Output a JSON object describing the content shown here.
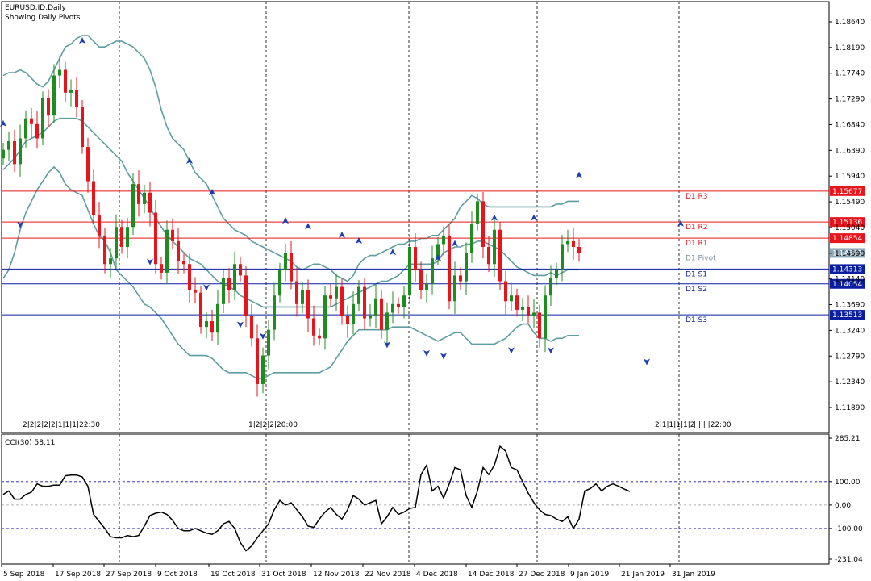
{
  "main": {
    "title": "EURUSD.ID,Daily",
    "subtitle": "Showing Daily Pivots.",
    "bottom_markers": [
      {
        "label": "2|2|2|2|2|1|1|1|22:30"
      },
      {
        "label": "1|2|2|2|20:00"
      },
      {
        "label": "2|1|1|1|1|2"
      },
      {
        "label": "| | | |22:00"
      }
    ]
  },
  "colors": {
    "bull": "#1e8c1e",
    "bear": "#e8141c",
    "bands": "#5f9ea0",
    "pivot_red": "#e8141c",
    "pivot_blue": "#0a1ea0",
    "pivot_mid": "#7f8f9f",
    "fractal": "#1e3cb4",
    "cci_line": "#000000",
    "cci_level": "#1414c8"
  },
  "chart_data": [
    {
      "type": "candlestick",
      "title": "EURUSD.ID,Daily",
      "ylim": [
        1.1166,
        1.1886
      ],
      "y_ticks": [
        "1.18640",
        "1.18190",
        "1.17740",
        "1.17290",
        "1.16840",
        "1.16390",
        "1.15940",
        "1.15490",
        "1.15040",
        "1.14590",
        "1.14140",
        "1.13690",
        "1.13240",
        "1.12790",
        "1.12340",
        "1.11890"
      ],
      "x_ticks": [
        "5 Sep 2018",
        "17 Sep 2018",
        "27 Sep 2018",
        "9 Oct 2018",
        "19 Oct 2018",
        "31 Oct 2018",
        "12 Nov 2018",
        "22 Nov 2018",
        "4 Dec 2018",
        "14 Dec 2018",
        "27 Dec 2018",
        "9 Jan 2019",
        "21 Jan 2019",
        "31 Jan 2019"
      ],
      "current_price": "1.14595",
      "pivots": [
        {
          "name": "D1 R3",
          "value": 1.15677,
          "tag": "1.15677",
          "color": "red"
        },
        {
          "name": "D1 R2",
          "value": 1.15136,
          "tag": "1.15136",
          "color": "red"
        },
        {
          "name": "D1 R1",
          "value": 1.14854,
          "tag": "1.14854",
          "color": "red"
        },
        {
          "name": "D1 Pivot",
          "value": 1.14595,
          "tag": "",
          "color": "mid"
        },
        {
          "name": "D1 S1",
          "value": 1.14313,
          "tag": "1.14313",
          "color": "blue"
        },
        {
          "name": "D1 S2",
          "value": 1.14054,
          "tag": "1.14054",
          "color": "blue"
        },
        {
          "name": "D1 S3",
          "value": 1.13513,
          "tag": "1.13513",
          "color": "blue"
        }
      ],
      "close": [
        1.164,
        1.1655,
        1.1615,
        1.166,
        1.1695,
        1.1685,
        1.166,
        1.173,
        1.17,
        1.177,
        1.178,
        1.174,
        1.1745,
        1.1715,
        1.1645,
        1.1585,
        1.1525,
        1.149,
        1.144,
        1.145,
        1.1505,
        1.147,
        1.1505,
        1.158,
        1.1545,
        1.1565,
        1.153,
        1.144,
        1.1425,
        1.15,
        1.148,
        1.1445,
        1.144,
        1.1395,
        1.139,
        1.133,
        1.134,
        1.132,
        1.137,
        1.1415,
        1.1395,
        1.144,
        1.142,
        1.135,
        1.131,
        1.123,
        1.128,
        1.1325,
        1.1385,
        1.143,
        1.146,
        1.141,
        1.137,
        1.1395,
        1.1345,
        1.1315,
        1.131,
        1.1385,
        1.138,
        1.14,
        1.135,
        1.1335,
        1.137,
        1.14,
        1.1345,
        1.135,
        1.138,
        1.1325,
        1.1355,
        1.137,
        1.1365,
        1.1385,
        1.147,
        1.143,
        1.1395,
        1.1405,
        1.145,
        1.1475,
        1.149,
        1.1375,
        1.142,
        1.141,
        1.146,
        1.151,
        1.155,
        1.147,
        1.144,
        1.15,
        1.141,
        1.1375,
        1.1385,
        1.136,
        1.1365,
        1.135,
        1.1355,
        1.131,
        1.1385,
        1.1415,
        1.143,
        1.1475,
        1.148,
        1.147,
        1.146
      ],
      "bands_upper": [
        1.177,
        1.1775,
        1.1775,
        1.178,
        1.1775,
        1.1765,
        1.1755,
        1.175,
        1.176,
        1.178,
        1.18,
        1.182,
        1.1825,
        1.1835,
        1.184,
        1.184,
        1.183,
        1.182,
        1.182,
        1.1825,
        1.183,
        1.183,
        1.1825,
        1.182,
        1.181,
        1.18,
        1.178,
        1.175,
        1.171,
        1.168,
        1.166,
        1.165,
        1.164,
        1.162,
        1.16,
        1.159,
        1.158,
        1.156,
        1.154,
        1.152,
        1.151,
        1.15,
        1.1495,
        1.149,
        1.148,
        1.1475,
        1.147,
        1.1465,
        1.146,
        1.1455,
        1.145,
        1.1445,
        1.1435,
        1.143,
        1.1435,
        1.144,
        1.144,
        1.1435,
        1.143,
        1.142,
        1.1415,
        1.141,
        1.142,
        1.144,
        1.145,
        1.1455,
        1.1455,
        1.146,
        1.1465,
        1.147,
        1.1475,
        1.1475,
        1.148,
        1.148,
        1.1485,
        1.1485,
        1.149,
        1.149,
        1.15,
        1.151,
        1.152,
        1.154,
        1.155,
        1.156,
        1.1555,
        1.1545,
        1.154,
        1.154,
        1.154,
        1.154,
        1.154,
        1.154,
        1.154,
        1.154,
        1.154,
        1.154,
        1.154,
        1.154,
        1.1545,
        1.1545,
        1.155,
        1.155,
        1.155
      ],
      "bands_mid": [
        1.1605,
        1.1615,
        1.1625,
        1.164,
        1.1655,
        1.166,
        1.1665,
        1.167,
        1.168,
        1.169,
        1.1695,
        1.1695,
        1.1695,
        1.1695,
        1.169,
        1.168,
        1.167,
        1.166,
        1.165,
        1.164,
        1.163,
        1.162,
        1.16,
        1.1585,
        1.157,
        1.1555,
        1.154,
        1.152,
        1.1505,
        1.149,
        1.148,
        1.147,
        1.146,
        1.145,
        1.1445,
        1.144,
        1.143,
        1.142,
        1.141,
        1.1405,
        1.14,
        1.1395,
        1.1385,
        1.138,
        1.1375,
        1.137,
        1.1365,
        1.1365,
        1.1365,
        1.1365,
        1.1365,
        1.1365,
        1.1365,
        1.1365,
        1.1365,
        1.1365,
        1.1365,
        1.1365,
        1.1365,
        1.137,
        1.1375,
        1.138,
        1.1385,
        1.139,
        1.1395,
        1.14,
        1.1405,
        1.141,
        1.141,
        1.1415,
        1.142,
        1.143,
        1.144,
        1.144,
        1.144,
        1.144,
        1.144,
        1.1445,
        1.146,
        1.1465,
        1.147,
        1.147,
        1.1475,
        1.1475,
        1.148,
        1.148,
        1.1475,
        1.147,
        1.1465,
        1.1455,
        1.1445,
        1.1435,
        1.143,
        1.1425,
        1.142,
        1.142,
        1.142,
        1.1425,
        1.142,
        1.1425,
        1.143,
        1.143,
        1.143
      ],
      "bands_lower": [
        1.1415,
        1.143,
        1.146,
        1.15,
        1.153,
        1.155,
        1.157,
        1.1585,
        1.16,
        1.161,
        1.16,
        1.158,
        1.157,
        1.1565,
        1.156,
        1.1535,
        1.151,
        1.149,
        1.148,
        1.146,
        1.143,
        1.142,
        1.141,
        1.14,
        1.1385,
        1.137,
        1.1365,
        1.1355,
        1.1345,
        1.133,
        1.1315,
        1.13,
        1.129,
        1.128,
        1.128,
        1.128,
        1.128,
        1.1275,
        1.1265,
        1.1255,
        1.125,
        1.125,
        1.125,
        1.125,
        1.1245,
        1.124,
        1.124,
        1.1245,
        1.125,
        1.125,
        1.125,
        1.125,
        1.125,
        1.125,
        1.125,
        1.125,
        1.125,
        1.1255,
        1.126,
        1.1275,
        1.129,
        1.1305,
        1.1315,
        1.1325,
        1.1325,
        1.1325,
        1.1325,
        1.1325,
        1.1325,
        1.133,
        1.133,
        1.133,
        1.133,
        1.1325,
        1.132,
        1.1315,
        1.131,
        1.1305,
        1.131,
        1.1315,
        1.132,
        1.132,
        1.131,
        1.13,
        1.13,
        1.13,
        1.13,
        1.13,
        1.1305,
        1.131,
        1.132,
        1.133,
        1.1335,
        1.1335,
        1.132,
        1.131,
        1.131,
        1.1305,
        1.131,
        1.131,
        1.1315,
        1.1315,
        1.1315
      ],
      "fractals_up": [
        [
          0,
          1.1675
        ],
        [
          14,
          1.182
        ],
        [
          33,
          1.161
        ],
        [
          37,
          1.1555
        ],
        [
          50,
          1.1505
        ],
        [
          54,
          1.1495
        ],
        [
          60,
          1.148
        ],
        [
          63,
          1.147
        ],
        [
          69,
          1.145
        ],
        [
          77,
          1.144
        ],
        [
          80,
          1.1465
        ],
        [
          87,
          1.151
        ],
        [
          94,
          1.151
        ],
        [
          102,
          1.1585
        ],
        [
          120,
          1.15
        ]
      ],
      "fractals_down": [
        [
          3,
          1.152
        ],
        [
          26,
          1.1455
        ],
        [
          36,
          1.141
        ],
        [
          42,
          1.1345
        ],
        [
          46,
          1.1325
        ],
        [
          68,
          1.131
        ],
        [
          75,
          1.1295
        ],
        [
          78,
          1.129
        ],
        [
          90,
          1.13
        ],
        [
          97,
          1.13
        ],
        [
          114,
          1.128
        ]
      ]
    },
    {
      "type": "line",
      "title": "CCI(30) 58.11",
      "ylim": [
        -231.04,
        285.21
      ],
      "y_ticks": [
        "285.21",
        "100.00",
        "0.00",
        "-100.00",
        "-231.04"
      ],
      "levels": [
        100,
        0,
        -100
      ],
      "values": [
        45,
        60,
        25,
        25,
        45,
        55,
        90,
        80,
        80,
        85,
        85,
        125,
        128,
        128,
        120,
        80,
        -40,
        -70,
        -100,
        -135,
        -140,
        -140,
        -130,
        -135,
        -130,
        -90,
        -45,
        -35,
        -30,
        -40,
        -65,
        -100,
        -110,
        -110,
        -100,
        -110,
        -120,
        -125,
        -110,
        -80,
        -70,
        -100,
        -160,
        -195,
        -175,
        -140,
        -110,
        -80,
        -20,
        20,
        0,
        10,
        -20,
        -50,
        -90,
        -95,
        -60,
        -30,
        -10,
        -40,
        -60,
        -20,
        40,
        25,
        0,
        10,
        20,
        -80,
        -50,
        -10,
        -40,
        -30,
        -15,
        -10,
        130,
        170,
        60,
        80,
        30,
        90,
        160,
        150,
        40,
        -10,
        60,
        160,
        130,
        170,
        250,
        230,
        160,
        150,
        100,
        50,
        10,
        -20,
        -40,
        -45,
        -60,
        -70,
        -50,
        -100,
        -60,
        60,
        70,
        90,
        60,
        80,
        90,
        80,
        68,
        58
      ]
    }
  ]
}
